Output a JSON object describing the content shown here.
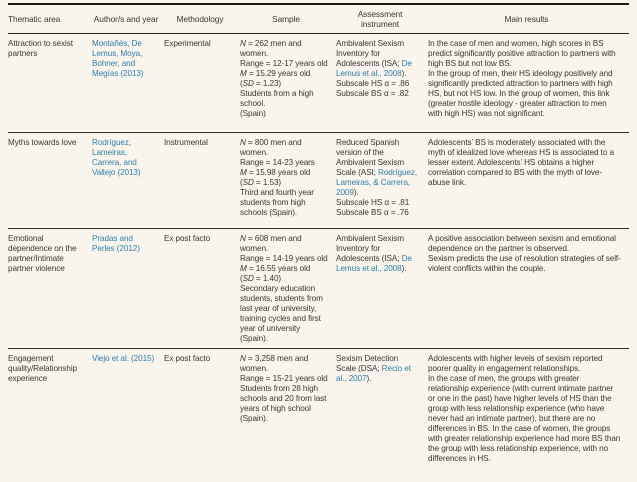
{
  "paper_table": {
    "columns": [
      "Thematic area",
      "Author/s and year",
      "Methodology",
      "Sample",
      "Assessment instrument",
      "Main results"
    ],
    "link_color": "#2e7fad",
    "rows": [
      {
        "thematic_area": "Attraction to sexist partners",
        "authors": "Montañés, De Lemus, Moya, Bohner, and Megías (2013)",
        "methodology": "Experimental",
        "sample": [
          [
            {
              "t": "N",
              "i": true
            },
            {
              "t": " = 262 men and women."
            }
          ],
          [
            {
              "t": "Range = 12-17 years old"
            }
          ],
          [
            {
              "t": "M",
              "i": true
            },
            {
              "t": " = 15.29 years old"
            }
          ],
          [
            {
              "t": "("
            },
            {
              "t": "SD",
              "i": true
            },
            {
              "t": " = 1.23)"
            }
          ],
          [
            {
              "t": "Students from a high school."
            }
          ],
          [
            {
              "t": "(Spain)"
            }
          ]
        ],
        "assessment": [
          [
            {
              "t": "Ambivalent Sexism Inventory for Adolescents (ISA; "
            },
            {
              "t": "De Lemus et al., 2008",
              "link": true
            },
            {
              "t": ")."
            }
          ],
          [
            {
              "t": "Subscale HS α = .86"
            }
          ],
          [
            {
              "t": "Subscale BS α = .82"
            }
          ]
        ],
        "main_results": [
          "In the case of men and women, high scores in BS predict significantly positive attraction to partners with high BS but not low BS.",
          "In the group of men, their HS ideology positively and significantly predicted attraction to partners with high HS, but not HS low. In the group of women, this link (greater hostile ideology - greater attraction to men with high HS) was not significant."
        ]
      },
      {
        "thematic_area": "Myths towards love",
        "authors": "Rodríguez, Lameiras, Carrera, and Vallejo (2013)",
        "methodology": "Instrumental",
        "sample": [
          [
            {
              "t": "N",
              "i": true
            },
            {
              "t": " = 800 men and women."
            }
          ],
          [
            {
              "t": "Range = 14-23 years"
            }
          ],
          [
            {
              "t": "M",
              "i": true
            },
            {
              "t": " = 15.98 years old"
            }
          ],
          [
            {
              "t": "("
            },
            {
              "t": "SD",
              "i": true
            },
            {
              "t": " = 1.53)"
            }
          ],
          [
            {
              "t": "Third and fourth year students from high schools (Spain)."
            }
          ]
        ],
        "assessment": [
          [
            {
              "t": "Reduced Spanish version of the Ambivalent Sexism Scale (ASI; "
            },
            {
              "t": "Rodríguez, Lameiras, & Carrera, 2009",
              "link": true
            },
            {
              "t": ")."
            }
          ],
          [
            {
              "t": "Subscale HS α = .81"
            }
          ],
          [
            {
              "t": "Subscale BS α = .76"
            }
          ]
        ],
        "main_results": [
          "Adolescents’ BS is moderately associated with the myth of idealized love whereas HS is associated to a lesser extent. Adolescents’ HS obtains a higher correlation compared to BS with the myth of love-abuse link."
        ]
      },
      {
        "thematic_area": "Emotional dependence on the partner/Intimate partner violence",
        "authors": "Pradas and Perles (2012)",
        "methodology": "Ex post facto",
        "sample": [
          [
            {
              "t": "N",
              "i": true
            },
            {
              "t": " = 608 men and women."
            }
          ],
          [
            {
              "t": "Range = 14-19 years old"
            }
          ],
          [
            {
              "t": "M",
              "i": true
            },
            {
              "t": " = 16.55 years old"
            }
          ],
          [
            {
              "t": "("
            },
            {
              "t": "SD",
              "i": true
            },
            {
              "t": " = 1.40)"
            }
          ],
          [
            {
              "t": "Secondary education students, students from last year of university, training cycles and first year of university (Spain)."
            }
          ]
        ],
        "assessment": [
          [
            {
              "t": "Ambivalent Sexism Inventory for Adolescents (ISA; "
            },
            {
              "t": "De Lemus et al., 2008",
              "link": true
            },
            {
              "t": ")."
            }
          ]
        ],
        "main_results": [
          "A positive association between sexism and emotional dependence on the partner is observed.",
          "Sexism predicts the use of resolution strategies of self-violent conflicts within the couple."
        ]
      },
      {
        "thematic_area": "Engagement quality/Relationship experience",
        "authors": "Viejo et al. (2015)",
        "methodology": "Ex post facto",
        "sample": [
          [
            {
              "t": "N",
              "i": true
            },
            {
              "t": " = 3,258 men and women."
            }
          ],
          [
            {
              "t": "Range = 15-21 years old"
            }
          ],
          [
            {
              "t": "Students from 28 high schools and 20 from last years of high school (Spain)."
            }
          ]
        ],
        "assessment": [
          [
            {
              "t": "Sexism Detection Scale (DSA; "
            },
            {
              "t": "Recio et al., 2007",
              "link": true
            },
            {
              "t": ")."
            }
          ]
        ],
        "main_results": [
          "Adolescents with higher levels of sexism reported poorer quality in engagement relationships.",
          "In the case of men, the groups with greater relationship experience (with current intimate partner or one in the past) have higher levels of HS than the group with less relationship experience (who have never had an intimate partner), but there are no differences in BS. In the case of women, the groups with greater relationship experience had more BS than the group with less relationship experience, with no differences in HS."
        ]
      }
    ]
  }
}
